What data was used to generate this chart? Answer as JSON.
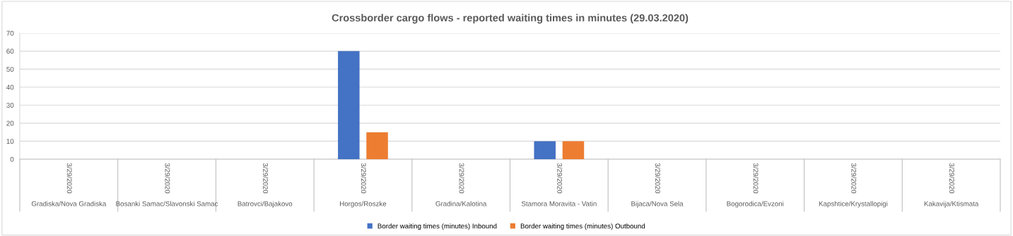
{
  "chart_data": {
    "type": "bar",
    "title": "Crossborder cargo flows - reported waiting times in minutes (29.03.2020)",
    "categories": [
      "Gradiska/Nova Gradiska",
      "Bosanki Samac/Slavonski Samac",
      "Batrovci/Bajakovo",
      "Horgos/Roszke",
      "Gradina/Kalotina",
      "Stamora Moravita - Vatin",
      "Bijaca/Nova Sela",
      "Bogorodica/Evzoni",
      "Kapshtice/Krystallopigi",
      "Kakavija/Ktismata"
    ],
    "annotations": [
      "3/29/2020",
      "3/29/2020",
      "3/29/2020",
      "3/29/2020",
      "3/29/2020",
      "3/29/2020",
      "3/29/2020",
      "3/29/2020",
      "3/29/2020",
      "3/29/2020"
    ],
    "series": [
      {
        "name": "Border waiting times (minutes) Inbound",
        "color": "#4472c4",
        "values": [
          0,
          0,
          0,
          60,
          0,
          10,
          0,
          0,
          0,
          0
        ]
      },
      {
        "name": "Border waiting times (minutes) Outbound",
        "color": "#ed7d31",
        "values": [
          0,
          0,
          0,
          15,
          0,
          10,
          0,
          0,
          0,
          0
        ]
      }
    ],
    "ylim": [
      0,
      70
    ],
    "yticks": [
      0,
      10,
      20,
      30,
      40,
      50,
      60,
      70
    ],
    "grid": "y",
    "legend": "bottom"
  }
}
